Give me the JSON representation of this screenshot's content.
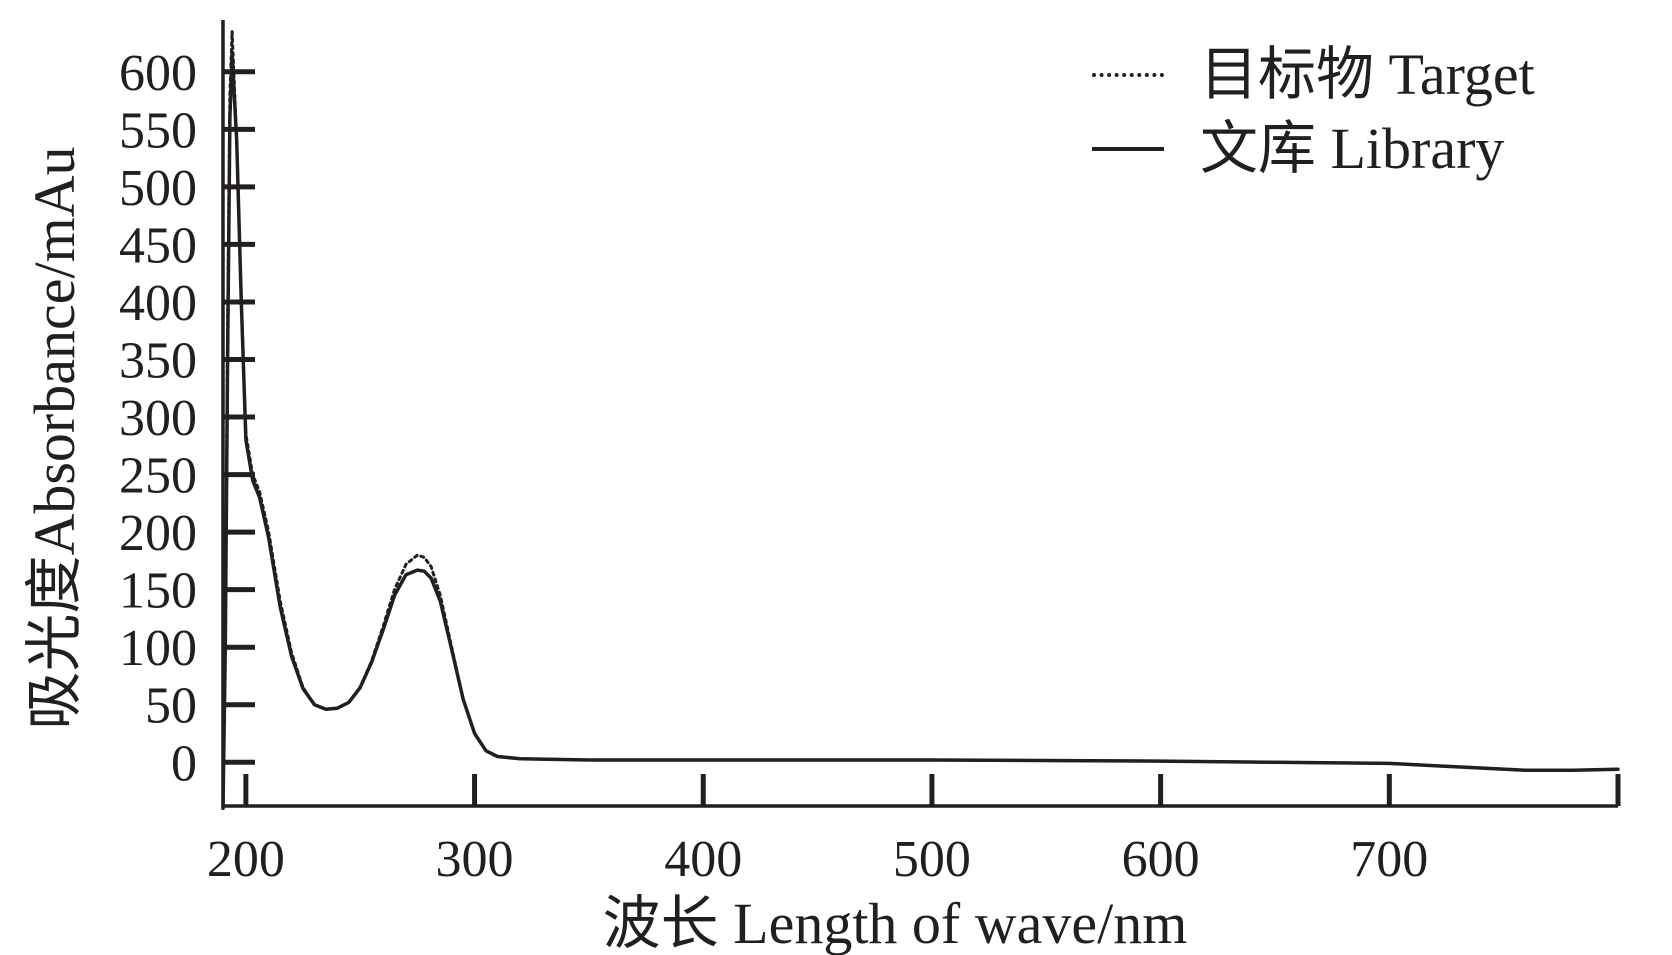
{
  "chart_data": {
    "type": "line",
    "xlabel": "波长 Length of wave/nm",
    "ylabel": "吸光度Absorbance/mAu",
    "xlim": [
      190,
      800
    ],
    "ylim": [
      -38,
      645
    ],
    "x_ticks": [
      200,
      300,
      400,
      500,
      600,
      700
    ],
    "y_ticks": [
      0,
      50,
      100,
      150,
      200,
      250,
      300,
      350,
      400,
      450,
      500,
      550,
      600
    ],
    "grid": false,
    "legend_position": "top-right",
    "series": [
      {
        "name": "目标物 Target",
        "style": "dotted",
        "x": [
          190,
          191,
          192,
          193,
          194,
          196,
          198,
          200,
          203,
          206,
          210,
          215,
          220,
          225,
          230,
          235,
          240,
          245,
          250,
          255,
          260,
          265,
          270,
          275,
          278,
          281,
          285,
          290,
          295,
          300,
          305,
          310,
          320,
          350,
          400,
          500,
          600,
          650,
          700,
          720,
          740,
          760,
          780,
          800
        ],
        "y": [
          -40,
          120,
          380,
          580,
          635,
          540,
          400,
          285,
          250,
          235,
          200,
          140,
          95,
          65,
          50,
          46,
          47,
          52,
          65,
          88,
          118,
          150,
          172,
          180,
          178,
          170,
          145,
          100,
          55,
          25,
          10,
          5,
          3,
          2,
          2,
          2,
          1,
          0,
          -1,
          -3,
          -5,
          -7,
          -7,
          -6
        ]
      },
      {
        "name": "文库 Library",
        "style": "solid",
        "x": [
          190,
          191,
          192,
          193,
          194,
          196,
          198,
          200,
          203,
          206,
          210,
          215,
          220,
          225,
          230,
          235,
          240,
          245,
          250,
          255,
          260,
          265,
          270,
          275,
          278,
          281,
          285,
          290,
          295,
          300,
          305,
          310,
          320,
          350,
          400,
          500,
          600,
          650,
          700,
          720,
          740,
          760,
          780,
          800
        ],
        "y": [
          -40,
          100,
          350,
          560,
          615,
          540,
          400,
          280,
          245,
          230,
          195,
          135,
          92,
          64,
          50,
          46,
          47,
          52,
          65,
          87,
          115,
          145,
          163,
          167,
          166,
          160,
          140,
          98,
          55,
          25,
          10,
          5,
          3,
          2,
          2,
          2,
          1,
          0,
          -1,
          -3,
          -5,
          -7,
          -7,
          -6
        ]
      }
    ]
  },
  "colors": {
    "axis": "#231f20",
    "line": "#231f20"
  }
}
